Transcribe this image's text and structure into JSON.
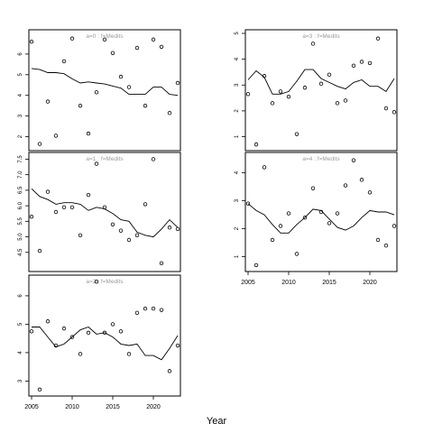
{
  "xlabel": "Year",
  "chart_data": [
    {
      "type": "scatter",
      "title": "a=0  :  f=Medits",
      "xlim": [
        2005,
        2023
      ],
      "ylim": [
        1.5,
        7.0
      ],
      "y_ticks": [
        2,
        3,
        4,
        5,
        6
      ],
      "points": [
        [
          2005,
          6.6
        ],
        [
          2006,
          1.65
        ],
        [
          2007,
          3.7
        ],
        [
          2008,
          2.05
        ],
        [
          2009,
          5.65
        ],
        [
          2010,
          6.75
        ],
        [
          2011,
          3.5
        ],
        [
          2012,
          2.15
        ],
        [
          2013,
          4.15
        ],
        [
          2014,
          6.7
        ],
        [
          2015,
          6.05
        ],
        [
          2016,
          4.9
        ],
        [
          2017,
          4.4
        ],
        [
          2018,
          6.3
        ],
        [
          2019,
          3.5
        ],
        [
          2020,
          6.7
        ],
        [
          2021,
          6.35
        ],
        [
          2022,
          3.15
        ],
        [
          2023,
          4.6
        ]
      ],
      "smooth": [
        [
          2005,
          5.3
        ],
        [
          2006,
          5.25
        ],
        [
          2007,
          5.1
        ],
        [
          2008,
          5.1
        ],
        [
          2009,
          5.05
        ],
        [
          2010,
          4.8
        ],
        [
          2011,
          4.6
        ],
        [
          2012,
          4.65
        ],
        [
          2013,
          4.6
        ],
        [
          2014,
          4.55
        ],
        [
          2015,
          4.45
        ],
        [
          2016,
          4.35
        ],
        [
          2017,
          4.05
        ],
        [
          2018,
          4.05
        ],
        [
          2019,
          4.05
        ],
        [
          2020,
          4.4
        ],
        [
          2021,
          4.4
        ],
        [
          2022,
          4.05
        ],
        [
          2023,
          4.0
        ]
      ]
    },
    {
      "type": "scatter",
      "title": "a=1  :  f=Medits",
      "xlim": [
        2005,
        2023
      ],
      "ylim": [
        4.0,
        7.6
      ],
      "y_ticks": [
        4.5,
        5.0,
        5.5,
        6.0,
        6.5,
        7.0,
        7.5
      ],
      "points": [
        [
          2005,
          5.65
        ],
        [
          2006,
          4.55
        ],
        [
          2007,
          6.45
        ],
        [
          2008,
          5.8
        ],
        [
          2009,
          5.95
        ],
        [
          2010,
          5.95
        ],
        [
          2011,
          5.05
        ],
        [
          2012,
          6.35
        ],
        [
          2013,
          7.35
        ],
        [
          2014,
          5.95
        ],
        [
          2015,
          5.4
        ],
        [
          2016,
          5.2
        ],
        [
          2017,
          4.9
        ],
        [
          2018,
          5.05
        ],
        [
          2019,
          6.05
        ],
        [
          2020,
          7.5
        ],
        [
          2021,
          4.15
        ],
        [
          2022,
          5.3
        ],
        [
          2023,
          5.25
        ]
      ],
      "smooth": [
        [
          2005,
          6.55
        ],
        [
          2006,
          6.3
        ],
        [
          2007,
          6.2
        ],
        [
          2008,
          6.05
        ],
        [
          2009,
          6.1
        ],
        [
          2010,
          6.1
        ],
        [
          2011,
          6.05
        ],
        [
          2012,
          5.85
        ],
        [
          2013,
          5.95
        ],
        [
          2014,
          5.9
        ],
        [
          2015,
          5.75
        ],
        [
          2016,
          5.55
        ],
        [
          2017,
          5.5
        ],
        [
          2018,
          5.15
        ],
        [
          2019,
          5.05
        ],
        [
          2020,
          5.0
        ],
        [
          2021,
          5.25
        ],
        [
          2022,
          5.55
        ],
        [
          2023,
          5.3
        ]
      ]
    },
    {
      "type": "scatter",
      "title": "a=2  :  f=Medits",
      "xlim": [
        2005,
        2023
      ],
      "ylim": [
        2.6,
        6.6
      ],
      "y_ticks": [
        3,
        4,
        5,
        6
      ],
      "points": [
        [
          2005,
          4.75
        ],
        [
          2006,
          2.7
        ],
        [
          2007,
          5.1
        ],
        [
          2008,
          4.25
        ],
        [
          2009,
          4.85
        ],
        [
          2010,
          4.55
        ],
        [
          2011,
          3.95
        ],
        [
          2012,
          4.7
        ],
        [
          2013,
          6.5
        ],
        [
          2014,
          4.7
        ],
        [
          2015,
          5.0
        ],
        [
          2016,
          4.75
        ],
        [
          2017,
          3.95
        ],
        [
          2018,
          5.4
        ],
        [
          2019,
          5.55
        ],
        [
          2020,
          5.55
        ],
        [
          2021,
          5.5
        ],
        [
          2022,
          3.35
        ],
        [
          2023,
          4.25
        ]
      ],
      "smooth": [
        [
          2005,
          4.9
        ],
        [
          2006,
          4.9
        ],
        [
          2007,
          4.55
        ],
        [
          2008,
          4.2
        ],
        [
          2009,
          4.3
        ],
        [
          2010,
          4.55
        ],
        [
          2011,
          4.8
        ],
        [
          2012,
          4.9
        ],
        [
          2013,
          4.65
        ],
        [
          2014,
          4.7
        ],
        [
          2015,
          4.55
        ],
        [
          2016,
          4.3
        ],
        [
          2017,
          4.25
        ],
        [
          2018,
          4.3
        ],
        [
          2019,
          3.9
        ],
        [
          2020,
          3.9
        ],
        [
          2021,
          3.75
        ],
        [
          2022,
          4.15
        ],
        [
          2023,
          4.6
        ]
      ]
    },
    {
      "type": "scatter",
      "title": "a=3  :  f=Medits",
      "xlim": [
        2005,
        2023
      ],
      "ylim": [
        0.6,
        5.0
      ],
      "y_ticks": [
        1,
        2,
        3,
        4,
        5
      ],
      "points": [
        [
          2005,
          2.65
        ],
        [
          2006,
          0.7
        ],
        [
          2007,
          3.35
        ],
        [
          2008,
          2.3
        ],
        [
          2009,
          2.75
        ],
        [
          2010,
          2.55
        ],
        [
          2011,
          1.1
        ],
        [
          2012,
          2.9
        ],
        [
          2013,
          4.6
        ],
        [
          2014,
          3.05
        ],
        [
          2015,
          3.4
        ],
        [
          2016,
          2.3
        ],
        [
          2017,
          2.4
        ],
        [
          2018,
          3.75
        ],
        [
          2019,
          3.9
        ],
        [
          2020,
          3.85
        ],
        [
          2021,
          4.8
        ],
        [
          2022,
          2.1
        ],
        [
          2023,
          1.95
        ]
      ],
      "smooth": [
        [
          2005,
          3.2
        ],
        [
          2006,
          3.55
        ],
        [
          2007,
          3.3
        ],
        [
          2008,
          2.65
        ],
        [
          2009,
          2.65
        ],
        [
          2010,
          2.75
        ],
        [
          2011,
          3.15
        ],
        [
          2012,
          3.6
        ],
        [
          2013,
          3.6
        ],
        [
          2014,
          3.25
        ],
        [
          2015,
          3.1
        ],
        [
          2016,
          2.95
        ],
        [
          2017,
          2.85
        ],
        [
          2018,
          3.1
        ],
        [
          2019,
          3.2
        ],
        [
          2020,
          2.95
        ],
        [
          2021,
          2.95
        ],
        [
          2022,
          2.75
        ],
        [
          2023,
          3.25
        ]
      ]
    },
    {
      "type": "scatter",
      "title": "a=4  :  f=Medits",
      "xlim": [
        2005,
        2023
      ],
      "ylim": [
        0.6,
        4.6
      ],
      "y_ticks": [
        1,
        2,
        3,
        4
      ],
      "points": [
        [
          2005,
          2.9
        ],
        [
          2006,
          0.7
        ],
        [
          2007,
          4.2
        ],
        [
          2008,
          1.6
        ],
        [
          2009,
          2.1
        ],
        [
          2010,
          2.55
        ],
        [
          2011,
          1.1
        ],
        [
          2012,
          2.4
        ],
        [
          2013,
          3.45
        ],
        [
          2014,
          2.6
        ],
        [
          2015,
          2.2
        ],
        [
          2016,
          2.55
        ],
        [
          2017,
          3.55
        ],
        [
          2018,
          4.45
        ],
        [
          2019,
          3.75
        ],
        [
          2020,
          3.3
        ],
        [
          2021,
          1.6
        ],
        [
          2022,
          1.4
        ],
        [
          2023,
          2.1
        ]
      ],
      "smooth": [
        [
          2005,
          2.9
        ],
        [
          2006,
          2.65
        ],
        [
          2007,
          2.5
        ],
        [
          2008,
          2.15
        ],
        [
          2009,
          1.85
        ],
        [
          2010,
          1.85
        ],
        [
          2011,
          2.15
        ],
        [
          2012,
          2.4
        ],
        [
          2013,
          2.7
        ],
        [
          2014,
          2.65
        ],
        [
          2015,
          2.35
        ],
        [
          2016,
          2.05
        ],
        [
          2017,
          1.95
        ],
        [
          2018,
          2.1
        ],
        [
          2019,
          2.4
        ],
        [
          2020,
          2.65
        ],
        [
          2021,
          2.6
        ],
        [
          2022,
          2.6
        ],
        [
          2023,
          2.5
        ]
      ]
    }
  ]
}
